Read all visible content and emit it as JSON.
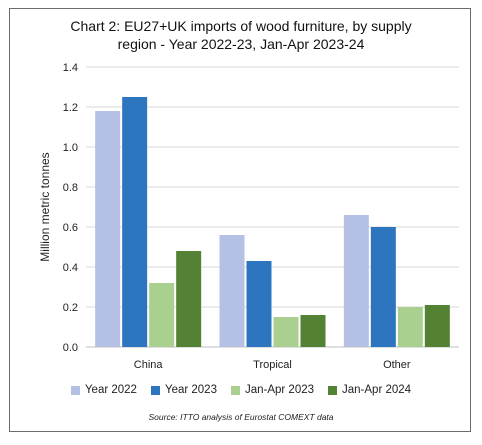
{
  "chart_data": {
    "type": "bar",
    "title_line1": "Chart 2: EU27+UK imports of wood furniture, by supply",
    "title_line2": "region - Year 2022-23, Jan-Apr 2023-24",
    "xlabel": "",
    "ylabel": "Million metric tonnes",
    "ylim": [
      0,
      1.4
    ],
    "yticks": [
      "0.0",
      "0.2",
      "0.4",
      "0.6",
      "0.8",
      "1.0",
      "1.2",
      "1.4"
    ],
    "categories": [
      "China",
      "Tropical",
      "Other"
    ],
    "series": [
      {
        "name": "Year 2022",
        "color": "#b4c1e4",
        "values": [
          1.18,
          0.56,
          0.66
        ]
      },
      {
        "name": "Year 2023",
        "color": "#2e75c0",
        "values": [
          1.25,
          0.43,
          0.6
        ]
      },
      {
        "name": "Jan-Apr 2023",
        "color": "#a9d08e",
        "values": [
          0.32,
          0.15,
          0.2
        ]
      },
      {
        "name": "Jan-Apr 2024",
        "color": "#548235",
        "values": [
          0.48,
          0.16,
          0.21
        ]
      }
    ],
    "grid": true,
    "legend_position": "bottom",
    "source": "Source: ITTO analysis of Eurostat COMEXT data"
  }
}
